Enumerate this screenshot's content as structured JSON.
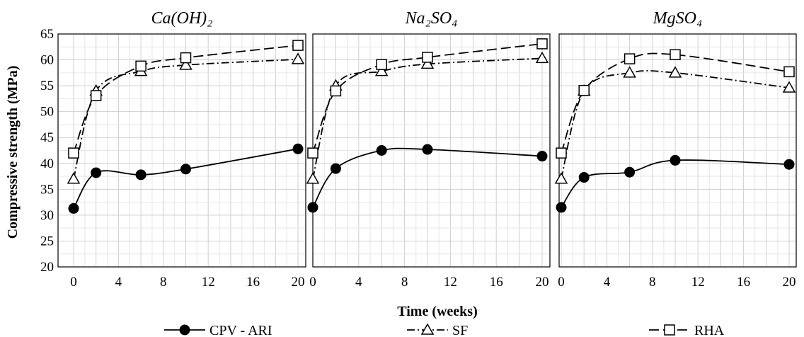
{
  "figure": {
    "ylabel": "Compressive strength (MPa)",
    "xlabel": "Time (weeks)"
  },
  "legend": [
    {
      "series": "CPV - ARI",
      "label": "CPV - ARI"
    },
    {
      "series": "SF",
      "label": "SF"
    },
    {
      "series": "RHA",
      "label": "RHA"
    }
  ],
  "chart_data": [
    {
      "type": "line",
      "title": "Ca(OH)₂",
      "xlabel": "Time (weeks)",
      "ylabel": "Compressive strength (MPa)",
      "xlim": [
        0,
        20
      ],
      "ylim": [
        20,
        65
      ],
      "xticks": [
        0,
        4,
        8,
        12,
        16,
        20
      ],
      "yticks": [
        20,
        25,
        30,
        35,
        40,
        45,
        50,
        55,
        60,
        65
      ],
      "grid": true,
      "legend_position": "bottom",
      "series": [
        {
          "name": "CPV - ARI",
          "marker": "filled-circle",
          "line": "solid",
          "x": [
            0,
            2,
            6,
            10,
            20
          ],
          "y": [
            31.3,
            38.2,
            37.8,
            38.9,
            42.8
          ]
        },
        {
          "name": "SF",
          "marker": "open-triangle",
          "line": "dash-dot",
          "x": [
            0,
            2,
            6,
            10,
            20
          ],
          "y": [
            37.0,
            54.0,
            57.8,
            59.0,
            60.1
          ]
        },
        {
          "name": "RHA",
          "marker": "open-square",
          "line": "dashed",
          "x": [
            0,
            2,
            6,
            10,
            20
          ],
          "y": [
            42.0,
            53.1,
            58.8,
            60.4,
            62.8
          ]
        }
      ]
    },
    {
      "type": "line",
      "title": "Na₂SO₄",
      "xlabel": "Time (weeks)",
      "ylabel": "Compressive strength (MPa)",
      "xlim": [
        0,
        20
      ],
      "ylim": [
        20,
        65
      ],
      "xticks": [
        0,
        4,
        8,
        12,
        16,
        20
      ],
      "yticks": [
        20,
        25,
        30,
        35,
        40,
        45,
        50,
        55,
        60,
        65
      ],
      "grid": true,
      "legend_position": "bottom",
      "series": [
        {
          "name": "CPV - ARI",
          "marker": "filled-circle",
          "line": "solid",
          "x": [
            0,
            2,
            6,
            10,
            20
          ],
          "y": [
            31.5,
            39.0,
            42.5,
            42.7,
            41.4
          ]
        },
        {
          "name": "SF",
          "marker": "open-triangle",
          "line": "dash-dot",
          "x": [
            0,
            2,
            6,
            10,
            20
          ],
          "y": [
            37.0,
            55.0,
            57.8,
            59.2,
            60.3
          ]
        },
        {
          "name": "RHA",
          "marker": "open-square",
          "line": "dashed",
          "x": [
            0,
            2,
            6,
            10,
            20
          ],
          "y": [
            42.0,
            54.0,
            59.1,
            60.5,
            63.1
          ]
        }
      ]
    },
    {
      "type": "line",
      "title": "MgSO₄",
      "xlabel": "Time (weeks)",
      "ylabel": "Compressive strength (MPa)",
      "xlim": [
        0,
        20
      ],
      "ylim": [
        20,
        65
      ],
      "xticks": [
        0,
        4,
        8,
        12,
        16,
        20
      ],
      "yticks": [
        20,
        25,
        30,
        35,
        40,
        45,
        50,
        55,
        60,
        65
      ],
      "grid": true,
      "legend_position": "bottom",
      "series": [
        {
          "name": "CPV - ARI",
          "marker": "filled-circle",
          "line": "solid",
          "x": [
            0,
            2,
            6,
            10,
            20
          ],
          "y": [
            31.5,
            37.3,
            38.3,
            40.6,
            39.8
          ]
        },
        {
          "name": "SF",
          "marker": "open-triangle",
          "line": "dash-dot",
          "x": [
            0,
            2,
            6,
            10,
            20
          ],
          "y": [
            37.0,
            54.0,
            57.5,
            57.5,
            54.6
          ]
        },
        {
          "name": "RHA",
          "marker": "open-square",
          "line": "dashed",
          "x": [
            0,
            2,
            6,
            10,
            20
          ],
          "y": [
            42.0,
            54.1,
            60.2,
            61.0,
            57.7
          ]
        }
      ]
    }
  ]
}
